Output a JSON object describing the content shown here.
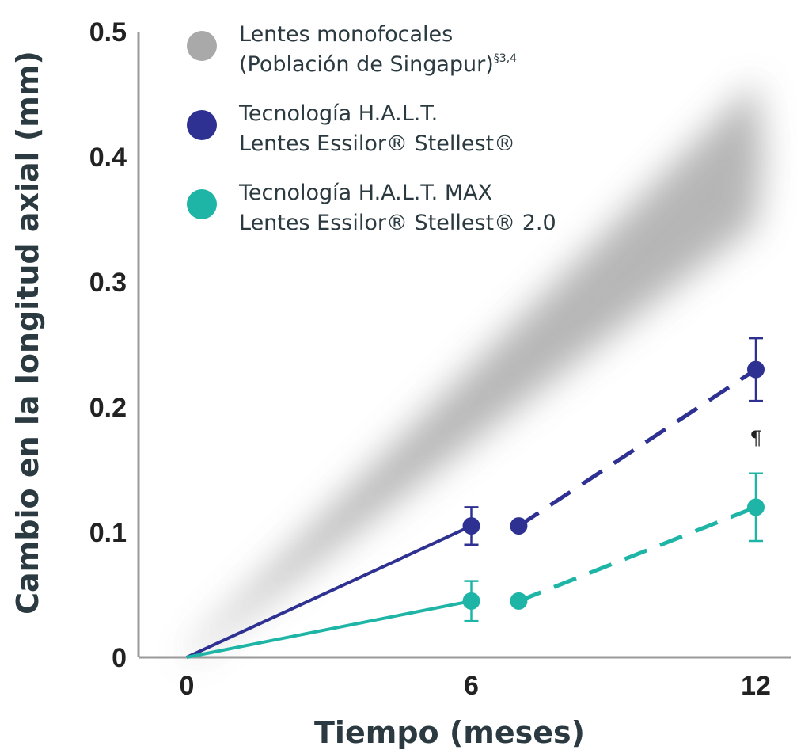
{
  "chart_data": {
    "type": "line",
    "xlabel": "Tiempo (meses)",
    "ylabel": "Cambio en la longitud axial (mm)",
    "xlim": [
      0,
      12
    ],
    "ylim": [
      0,
      0.5
    ],
    "x_ticks": [
      "0",
      "6",
      "12"
    ],
    "y_ticks": [
      "0",
      "0.1",
      "0.2",
      "0.3",
      "0.4",
      "0.5"
    ],
    "grid": false,
    "legend_position": "top-left",
    "series": [
      {
        "name": "Lentes monofocales (Población de Singapur)§3,4",
        "legend_lines": [
          "Lentes monofocales",
          "(Población de Singapur)"
        ],
        "legend_sup": "§3,4",
        "style": "shaded-band",
        "color": "#a9a9a9",
        "x": [
          0,
          12
        ],
        "y": [
          0,
          0.4
        ]
      },
      {
        "name": "Tecnología H.A.L.T. Lentes Essilor® Stellest®",
        "legend_lines": [
          "Tecnología H.A.L.T.",
          "Lentes Essilor® Stellest®"
        ],
        "color": "#2e3192",
        "solid": {
          "x": [
            0,
            6
          ],
          "y": [
            0,
            0.105
          ]
        },
        "dashed": {
          "x": [
            7,
            12
          ],
          "y": [
            0.105,
            0.23
          ]
        },
        "points": [
          {
            "x": 6,
            "y": 0.105,
            "err": 0.015
          },
          {
            "x": 7,
            "y": 0.105
          },
          {
            "x": 12,
            "y": 0.23,
            "err": 0.025
          }
        ]
      },
      {
        "name": "Tecnología H.A.L.T. MAX Lentes Essilor® Stellest® 2.0",
        "legend_lines": [
          "Tecnología H.A.L.T. MAX",
          "Lentes Essilor® Stellest® 2.0"
        ],
        "color": "#1fb5a6",
        "solid": {
          "x": [
            0,
            6
          ],
          "y": [
            0,
            0.045
          ]
        },
        "dashed": {
          "x": [
            7,
            12
          ],
          "y": [
            0.045,
            0.12
          ]
        },
        "points": [
          {
            "x": 6,
            "y": 0.045,
            "err": 0.016
          },
          {
            "x": 7,
            "y": 0.045
          },
          {
            "x": 12,
            "y": 0.12,
            "err": 0.027
          }
        ]
      }
    ],
    "annotations": [
      {
        "text": "¶",
        "x": 12,
        "y": 0.175
      }
    ]
  }
}
